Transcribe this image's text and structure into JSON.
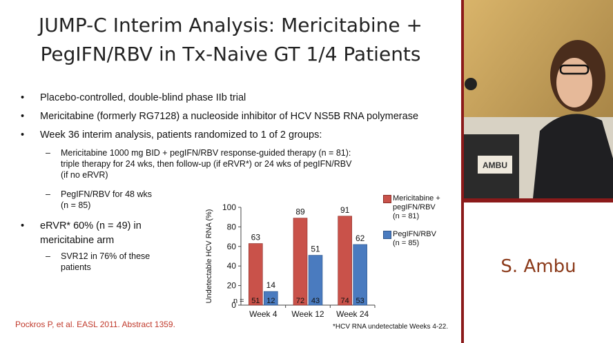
{
  "slide": {
    "title_line1": "JUMP-C Interim Analysis: Mericitabine +",
    "title_line2": "PegIFN/RBV in Tx-Naive GT 1/4 Patients",
    "bullets": {
      "b1": "Placebo-controlled, double-blind phase IIb trial",
      "b2": "Mericitabine (formerly RG7128) a nucleoside inhibitor of HCV NS5B RNA polymerase",
      "b3": "Week 36 interim analysis, patients randomized to 1 of 2 groups:",
      "b3_sub1_l1": "Mericitabine 1000 mg BID + pegIFN/RBV response-guided therapy (n = 81):",
      "b3_sub1_l2": "triple therapy for 24 wks, then follow-up (if eRVR*) or 24 wks of pegIFN/RBV",
      "b3_sub1_l3": "(if no eRVR)",
      "b3_sub2_l1": "PegIFN/RBV for 48 wks",
      "b3_sub2_l2": "(n = 85)",
      "b4_l1": "eRVR* 60% (n = 49) in",
      "b4_l2": "mericitabine arm",
      "b4_sub1_l1": "SVR12 in 76% of these",
      "b4_sub1_l2": "patients"
    },
    "bullet_symbol": "•",
    "dash_symbol": "–",
    "reference": "Pockros P, et al. EASL 2011. Abstract 1359.",
    "footnote": "*HCV RNA undetectable Weeks 4-22."
  },
  "chart_data": {
    "type": "bar",
    "categories": [
      "Week 4",
      "Week 12",
      "Week 24"
    ],
    "series": [
      {
        "name": "Mericitabine + pegIFN/RBV (n = 81)",
        "values": [
          63,
          89,
          91
        ],
        "n_values": [
          "51",
          "72",
          "74"
        ],
        "color": "#c9524a"
      },
      {
        "name": "PegIFN/RBV (n = 85)",
        "values": [
          14,
          51,
          62
        ],
        "n_values": [
          "12",
          "43",
          "53"
        ],
        "color": "#4a7bbf"
      }
    ],
    "ylabel": "Undetectable HCV RNA (%)",
    "ylim": [
      0,
      100
    ],
    "yticks": [
      "0",
      "20",
      "40",
      "60",
      "80",
      "100"
    ],
    "n_label": "n =",
    "legend": {
      "s1_l1": "Mericitabine +",
      "s1_l2": "pegIFN/RBV",
      "s1_l3": "(n = 81)",
      "s2_l1": "PegIFN/RBV",
      "s2_l2": "(n = 85)"
    }
  },
  "speaker": {
    "name": "S. Ambu",
    "nameplate_text": "AMBU"
  }
}
